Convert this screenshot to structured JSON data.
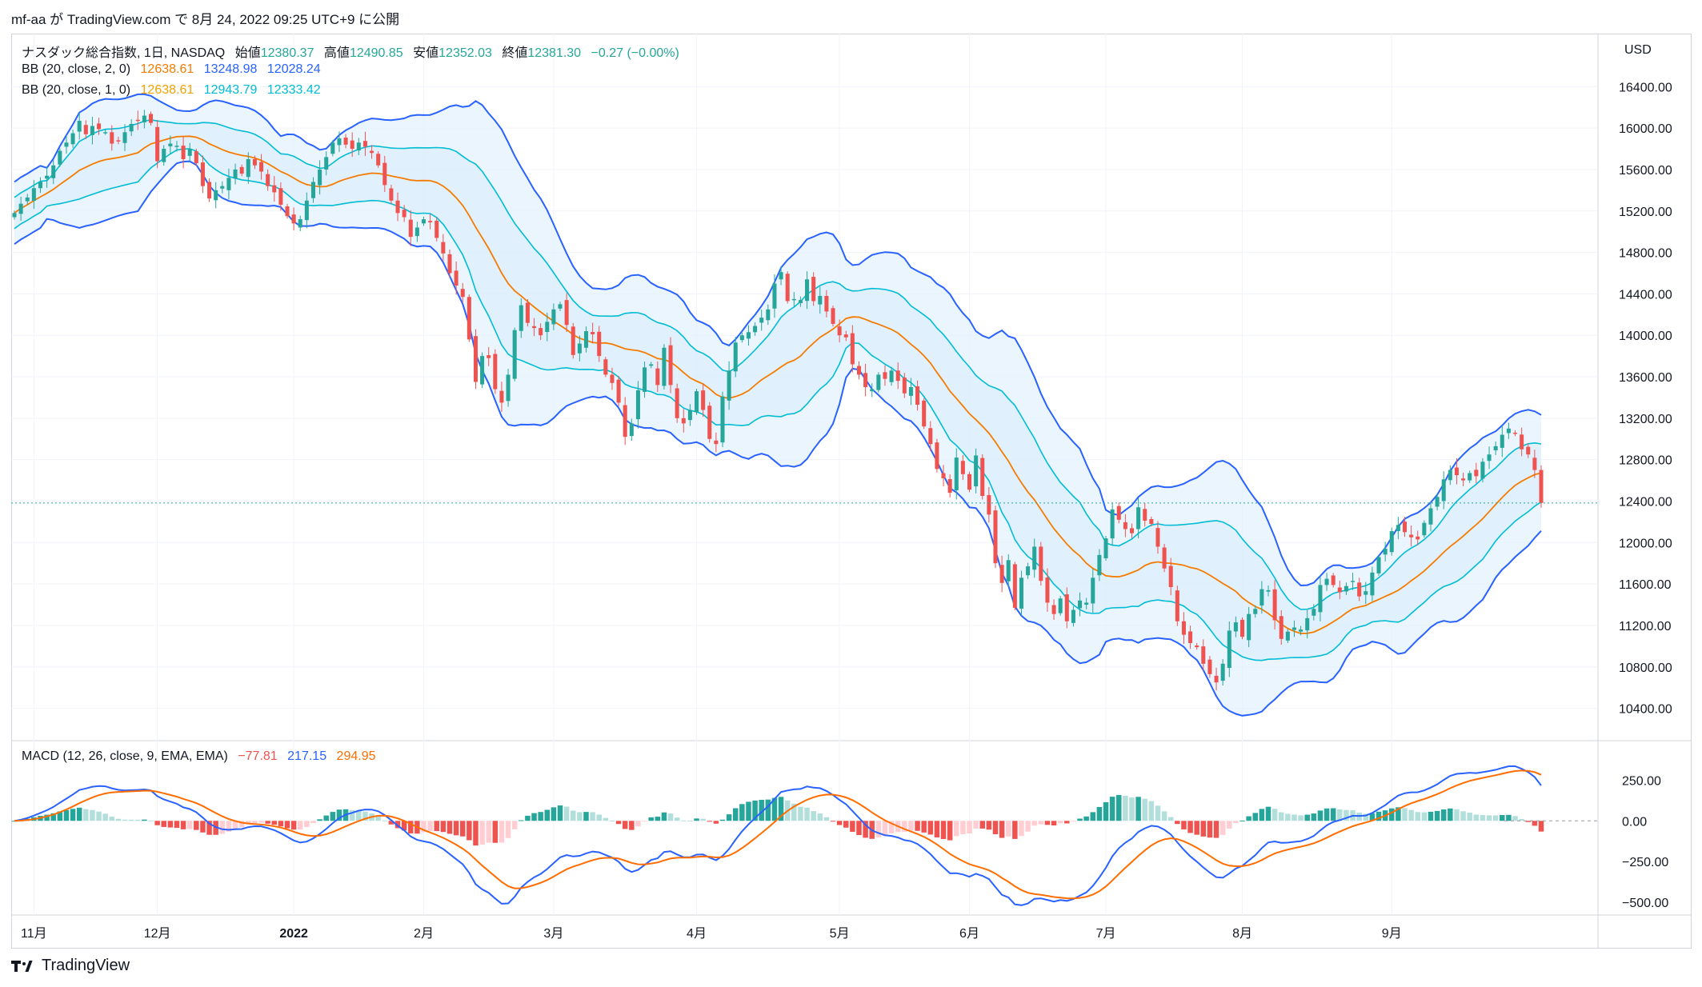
{
  "header": {
    "publish_line": "mf-aa が TradingView.com で 8月 24, 2022 09:25 UTC+9 に公開"
  },
  "legend": {
    "symbol": "ナスダック総合指数, 1日, NASDAQ",
    "open_label": "始値",
    "open": "12380.37",
    "high_label": "高値",
    "high": "12490.85",
    "low_label": "安値",
    "low": "12352.03",
    "close_label": "終値",
    "close": "12381.30",
    "change": "−0.27 (−0.00%)",
    "bb2_label": "BB (20, close, 2, 0)",
    "bb2_mid": "12638.61",
    "bb2_up": "13248.98",
    "bb2_lo": "12028.24",
    "bb1_label": "BB (20, close, 1, 0)",
    "bb1_mid": "12638.61",
    "bb1_up": "12943.79",
    "bb1_lo": "12333.42",
    "macd_label": "MACD (12, 26, close, 9, EMA, EMA)",
    "macd_hist": "−77.81",
    "macd_line": "217.15",
    "macd_signal": "294.95"
  },
  "colors": {
    "up": "#26a69a",
    "down": "#ef5350",
    "up_light": "#b2dfdb",
    "down_light": "#ffcdd2",
    "bb_outer": "#2962ff",
    "bb_inner": "#00bcd4",
    "bb_mid": "#f57c00",
    "fill": "#e3f2fd",
    "macd": "#2962ff",
    "signal": "#ff6d00"
  },
  "footer": {
    "brand": "TradingView"
  },
  "chart_data": [
    {
      "type": "candlestick",
      "title": "ナスダック総合指数, 1日, NASDAQ",
      "currency": "USD",
      "ylim": [
        10250,
        16850
      ],
      "y_ticks": [
        "16400.00",
        "16000.00",
        "15600.00",
        "15200.00",
        "14800.00",
        "14400.00",
        "14000.00",
        "13600.00",
        "13200.00",
        "12800.00",
        "12400.00",
        "12000.00",
        "11600.00",
        "11200.00",
        "10800.00",
        "10400.00"
      ],
      "x_ticks": [
        "11月",
        "12月",
        "2022",
        "2月",
        "3月",
        "4月",
        "5月",
        "6月",
        "7月",
        "8月",
        "9月"
      ],
      "last_price": 12381.3,
      "close_series": [
        15180,
        15270,
        15330,
        15420,
        15480,
        15540,
        15640,
        15780,
        15860,
        15950,
        16070,
        15940,
        16020,
        15990,
        15960,
        15850,
        15880,
        15960,
        16040,
        16070,
        16120,
        16050,
        15680,
        15800,
        15850,
        15830,
        15700,
        15800,
        15660,
        15440,
        15320,
        15400,
        15440,
        15520,
        15600,
        15560,
        15700,
        15640,
        15580,
        15440,
        15380,
        15260,
        15150,
        15080,
        15120,
        15300,
        15480,
        15600,
        15720,
        15860,
        15900,
        15840,
        15800,
        15860,
        15820,
        15760,
        15640,
        15450,
        15300,
        15180,
        15140,
        14950,
        15040,
        15120,
        15090,
        14940,
        14790,
        14600,
        14480,
        14370,
        13960,
        13550,
        13800,
        13780,
        13480,
        13350,
        13620,
        14050,
        14290,
        14120,
        14070,
        14000,
        14130,
        14250,
        14300,
        14100,
        13810,
        13920,
        14040,
        14010,
        13800,
        13620,
        13540,
        13350,
        13020,
        13150,
        13470,
        13690,
        13720,
        13520,
        13880,
        13520,
        13200,
        13150,
        13280,
        13460,
        13280,
        13000,
        12950,
        13410,
        13660,
        13930,
        14000,
        14030,
        14090,
        14170,
        14250,
        14500,
        14610,
        14330,
        14350,
        14340,
        14540,
        14330,
        14380,
        14230,
        14110,
        14000,
        13980,
        13720,
        13620,
        13500,
        13480,
        13620,
        13580,
        13660,
        13560,
        13440,
        13500,
        13330,
        13120,
        12950,
        12710,
        12620,
        12480,
        12820,
        12660,
        12510,
        12840,
        12450,
        12270,
        11800,
        11610,
        11830,
        11370,
        11660,
        11770,
        11960,
        11630,
        11420,
        11310,
        11460,
        11240,
        11350,
        11440,
        11420,
        11660,
        11880,
        12040,
        12320,
        12220,
        12130,
        12090,
        12340,
        12210,
        12180,
        11960,
        11750,
        11570,
        11240,
        11110,
        11030,
        10990,
        10830,
        10730,
        10650,
        10830,
        11150,
        11230,
        11090,
        11310,
        11360,
        11550,
        11540,
        11250,
        11070,
        11140,
        11180,
        11160,
        11270,
        11360,
        11590,
        11650,
        11590,
        11520,
        11580,
        11630,
        11480,
        11530,
        11710,
        11860,
        11940,
        12110,
        12170,
        12100,
        12050,
        12030,
        12190,
        12330,
        12440,
        12610,
        12700,
        12650,
        12600,
        12670,
        12640,
        12780,
        12850,
        12930,
        13040,
        13100,
        13050,
        12900,
        12850,
        12700,
        12382
      ],
      "macd": {
        "ylim": [
          -560,
          400
        ],
        "y_ticks": [
          "250.00",
          "0.00",
          "−250.00",
          "−500.00"
        ],
        "macd_last": 217.15,
        "signal_last": 294.95,
        "hist_last": -77.81
      }
    }
  ]
}
